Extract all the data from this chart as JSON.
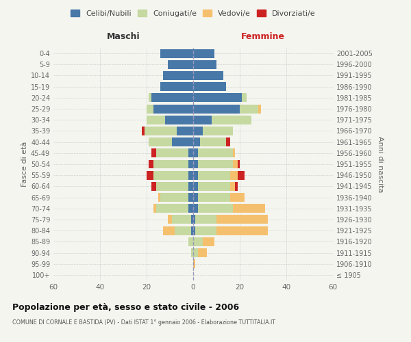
{
  "age_groups": [
    "100+",
    "95-99",
    "90-94",
    "85-89",
    "80-84",
    "75-79",
    "70-74",
    "65-69",
    "60-64",
    "55-59",
    "50-54",
    "45-49",
    "40-44",
    "35-39",
    "30-34",
    "25-29",
    "20-24",
    "15-19",
    "10-14",
    "5-9",
    "0-4"
  ],
  "birth_years": [
    "≤ 1905",
    "1906-1910",
    "1911-1915",
    "1916-1920",
    "1921-1925",
    "1926-1930",
    "1931-1935",
    "1936-1940",
    "1941-1945",
    "1946-1950",
    "1951-1955",
    "1956-1960",
    "1961-1965",
    "1966-1970",
    "1971-1975",
    "1976-1980",
    "1981-1985",
    "1986-1990",
    "1991-1995",
    "1996-2000",
    "2001-2005"
  ],
  "males": {
    "celibi": [
      0,
      0,
      0,
      0,
      1,
      1,
      2,
      2,
      2,
      2,
      2,
      2,
      9,
      7,
      12,
      17,
      18,
      14,
      13,
      11,
      14
    ],
    "coniugati": [
      0,
      0,
      1,
      2,
      7,
      8,
      14,
      12,
      14,
      15,
      15,
      14,
      10,
      14,
      8,
      3,
      1,
      0,
      0,
      0,
      0
    ],
    "vedovi": [
      0,
      0,
      0,
      0,
      5,
      2,
      1,
      1,
      0,
      0,
      0,
      0,
      0,
      0,
      0,
      0,
      0,
      0,
      0,
      0,
      0
    ],
    "divorziati": [
      0,
      0,
      0,
      0,
      0,
      0,
      0,
      0,
      2,
      3,
      2,
      2,
      0,
      1,
      0,
      0,
      0,
      0,
      0,
      0,
      0
    ]
  },
  "females": {
    "nubili": [
      0,
      0,
      0,
      0,
      1,
      1,
      2,
      2,
      2,
      2,
      2,
      2,
      3,
      4,
      8,
      20,
      21,
      14,
      13,
      10,
      9
    ],
    "coniugate": [
      0,
      0,
      2,
      4,
      9,
      9,
      15,
      14,
      14,
      14,
      15,
      15,
      11,
      13,
      17,
      8,
      2,
      0,
      0,
      0,
      0
    ],
    "vedove": [
      0,
      1,
      4,
      5,
      22,
      22,
      14,
      6,
      2,
      3,
      2,
      1,
      0,
      0,
      0,
      1,
      0,
      0,
      0,
      0,
      0
    ],
    "divorziate": [
      0,
      0,
      0,
      0,
      0,
      0,
      0,
      0,
      1,
      3,
      1,
      0,
      2,
      0,
      0,
      0,
      0,
      0,
      0,
      0,
      0
    ]
  },
  "colors": {
    "celibi_nubili": "#4878a8",
    "coniugati_e": "#c5d9a0",
    "vedovi_e": "#f5c06e",
    "divorziati_e": "#cc2222"
  },
  "xlim": 60,
  "title": "Popolazione per età, sesso e stato civile - 2006",
  "subtitle": "COMUNE DI CORNALE E BASTIDA (PV) - Dati ISTAT 1° gennaio 2006 - Elaborazione TUTTITALIA.IT",
  "xlabel_left": "Maschi",
  "xlabel_right": "Femmine",
  "ylabel_left": "Fasce di età",
  "ylabel_right": "Anni di nascita",
  "bg_color": "#f5f5f0",
  "grid_color": "#cccccc",
  "legend_labels": [
    "Celibi/Nubili",
    "Coniugati/e",
    "Vedovi/e",
    "Divorziati/e"
  ]
}
